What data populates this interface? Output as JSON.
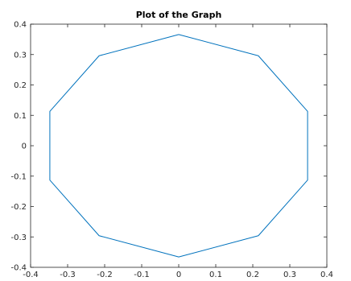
{
  "chart_data": {
    "type": "line",
    "title": "Plot of the Graph",
    "xlabel": "",
    "ylabel": "",
    "xlim": [
      -0.4,
      0.4
    ],
    "ylim": [
      -0.4,
      0.4
    ],
    "xticks": [
      -0.4,
      -0.3,
      -0.2,
      -0.1,
      0,
      0.1,
      0.2,
      0.3,
      0.4
    ],
    "yticks": [
      -0.4,
      -0.3,
      -0.2,
      -0.1,
      0,
      0.1,
      0.2,
      0.3,
      0.4
    ],
    "xtick_labels": [
      "-0.4",
      "-0.3",
      "-0.2",
      "-0.1",
      "0",
      "0.1",
      "0.2",
      "0.3",
      "0.4"
    ],
    "ytick_labels": [
      "-0.4",
      "-0.3",
      "-0.2",
      "-0.1",
      "0",
      "0.1",
      "0.2",
      "0.3",
      "0.4"
    ],
    "grid": false,
    "series": [
      {
        "color": "#0072BD",
        "x": [
          0,
          0.215,
          0.348,
          0.348,
          0.215,
          0,
          -0.215,
          -0.348,
          -0.348,
          -0.215,
          0
        ],
        "y": [
          0.366,
          0.296,
          0.113,
          -0.113,
          -0.296,
          -0.366,
          -0.296,
          -0.113,
          0.113,
          0.296,
          0.366
        ]
      }
    ]
  }
}
